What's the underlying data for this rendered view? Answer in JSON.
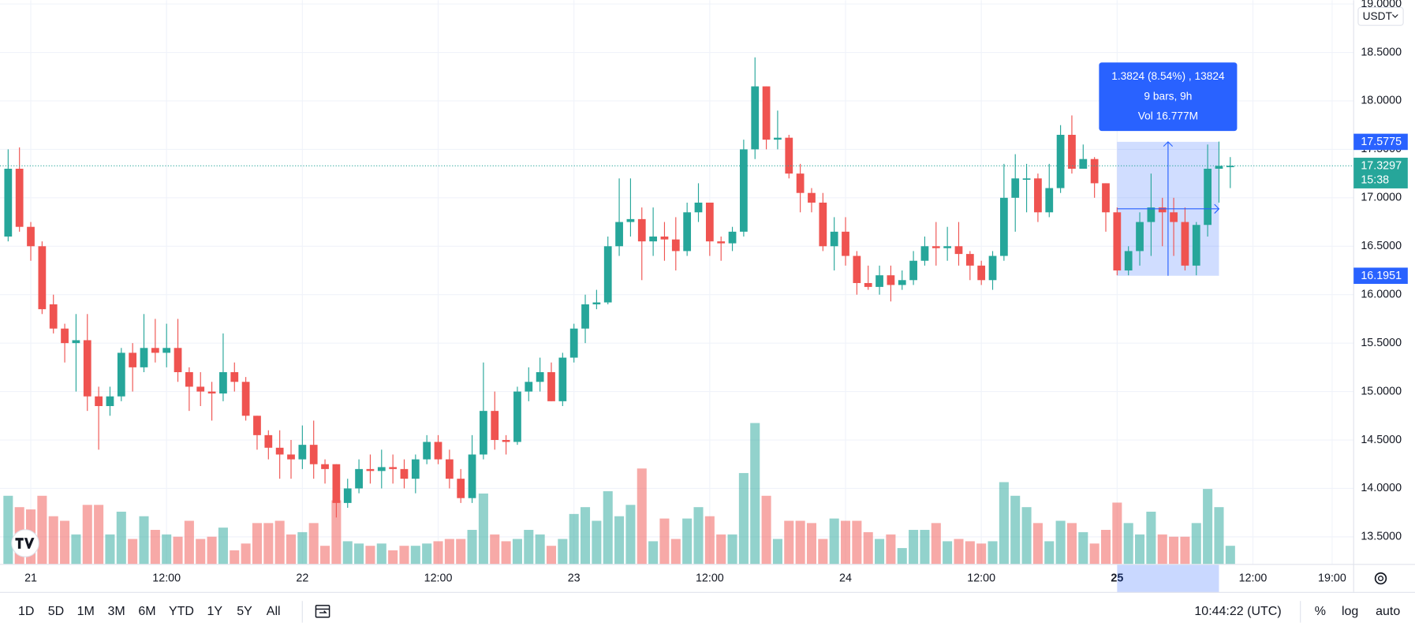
{
  "chart_data": {
    "type": "candlestick",
    "currency": "USDT",
    "up_color": "#26a69a",
    "down_color": "#ef5350",
    "open": [
      16.6,
      17.3,
      16.7,
      16.5,
      15.9,
      15.65,
      15.5,
      15.53,
      14.95,
      14.85,
      14.95,
      15.4,
      15.25,
      15.45,
      15.4,
      15.45,
      15.2,
      15.05,
      15.0,
      14.98,
      15.2,
      15.1,
      14.75,
      14.55,
      14.42,
      14.35,
      14.3,
      14.45,
      14.25,
      14.25,
      13.85,
      14.0,
      14.2,
      14.18,
      14.22,
      14.2,
      14.1,
      14.3,
      14.48,
      14.3,
      14.1,
      13.9,
      14.35,
      14.8,
      14.5,
      14.48,
      15.0,
      15.1,
      15.2,
      14.9,
      15.35,
      15.65,
      15.9,
      15.92,
      16.5,
      16.75,
      16.78,
      16.55,
      16.6,
      16.57,
      16.45,
      16.85,
      16.95,
      16.55,
      16.53,
      16.65,
      17.5,
      18.15,
      17.6,
      17.62,
      17.25,
      17.05,
      16.95,
      16.5,
      16.65,
      16.4,
      16.12,
      16.08,
      16.2,
      16.1,
      16.15,
      16.35,
      16.5,
      16.48,
      16.5,
      16.42,
      16.3,
      16.15,
      16.4,
      17.0,
      17.2,
      17.2,
      16.85,
      17.1,
      17.65,
      17.3,
      17.4,
      17.15,
      16.85,
      16.25,
      16.45,
      16.75,
      16.9,
      16.85,
      16.75,
      16.3,
      16.72,
      17.3,
      17.33
    ],
    "high": [
      17.5,
      17.52,
      16.75,
      16.55,
      16.0,
      15.7,
      15.8,
      15.8,
      15.05,
      15.05,
      15.45,
      15.5,
      15.8,
      15.75,
      15.7,
      15.75,
      15.25,
      15.2,
      15.1,
      15.6,
      15.3,
      15.15,
      14.75,
      14.6,
      14.6,
      14.5,
      14.65,
      14.7,
      14.3,
      14.25,
      14.1,
      14.3,
      14.35,
      14.4,
      14.35,
      14.3,
      14.35,
      14.55,
      14.55,
      14.4,
      14.2,
      14.55,
      15.3,
      15.0,
      14.55,
      15.05,
      15.25,
      15.35,
      15.3,
      15.4,
      15.7,
      16.0,
      16.05,
      16.6,
      17.2,
      17.2,
      16.9,
      16.9,
      16.75,
      16.8,
      16.95,
      17.15,
      16.95,
      16.6,
      16.7,
      17.6,
      18.45,
      18.15,
      17.9,
      17.65,
      17.35,
      17.1,
      17.05,
      16.8,
      16.8,
      16.45,
      16.3,
      16.3,
      16.3,
      16.25,
      16.45,
      16.6,
      16.75,
      16.7,
      16.75,
      16.45,
      16.35,
      16.45,
      17.35,
      17.45,
      17.35,
      17.25,
      17.35,
      17.75,
      17.85,
      17.55,
      17.42,
      17.15,
      16.9,
      16.5,
      16.85,
      17.25,
      17.0,
      17.0,
      16.9,
      16.75,
      17.55,
      17.58,
      17.42
    ],
    "low": [
      16.55,
      16.65,
      16.35,
      15.8,
      15.6,
      15.3,
      15.0,
      14.8,
      14.4,
      14.75,
      14.9,
      15.0,
      15.2,
      15.3,
      15.25,
      15.1,
      14.8,
      14.85,
      14.7,
      14.9,
      15.0,
      14.7,
      14.4,
      14.3,
      14.1,
      14.1,
      14.2,
      14.1,
      14.05,
      13.7,
      13.8,
      13.95,
      14.05,
      14.0,
      14.05,
      14.0,
      13.95,
      14.25,
      14.25,
      14.0,
      13.85,
      13.85,
      14.3,
      14.4,
      14.35,
      14.45,
      14.9,
      15.0,
      14.9,
      14.85,
      15.3,
      15.5,
      15.85,
      15.9,
      16.4,
      16.6,
      16.15,
      16.4,
      16.35,
      16.25,
      16.4,
      16.75,
      16.4,
      16.35,
      16.45,
      16.6,
      17.4,
      17.5,
      17.5,
      17.2,
      16.85,
      16.85,
      16.45,
      16.25,
      16.3,
      16.0,
      16.05,
      16.0,
      15.93,
      16.05,
      16.1,
      16.3,
      16.3,
      16.35,
      16.3,
      16.15,
      16.1,
      16.05,
      16.35,
      16.65,
      16.85,
      16.75,
      16.8,
      17.05,
      17.25,
      17.3,
      17.0,
      16.65,
      16.2,
      16.2,
      16.3,
      16.4,
      16.5,
      16.4,
      16.25,
      16.2,
      16.6,
      16.95,
      17.1
    ],
    "close": [
      17.3,
      16.7,
      16.5,
      15.85,
      15.65,
      15.5,
      15.53,
      14.95,
      14.85,
      14.95,
      15.4,
      15.25,
      15.45,
      15.4,
      15.45,
      15.2,
      15.05,
      15.0,
      14.98,
      15.2,
      15.1,
      14.75,
      14.55,
      14.42,
      14.35,
      14.3,
      14.45,
      14.25,
      14.2,
      13.85,
      14.0,
      14.2,
      14.18,
      14.22,
      14.2,
      14.1,
      14.3,
      14.48,
      14.3,
      14.1,
      13.9,
      14.35,
      14.8,
      14.5,
      14.48,
      15.0,
      15.1,
      15.2,
      14.9,
      15.35,
      15.65,
      15.9,
      15.92,
      16.5,
      16.75,
      16.78,
      16.55,
      16.6,
      16.57,
      16.45,
      16.85,
      16.95,
      16.55,
      16.53,
      16.65,
      17.5,
      18.15,
      17.6,
      17.62,
      17.25,
      17.05,
      16.95,
      16.5,
      16.65,
      16.4,
      16.12,
      16.08,
      16.2,
      16.1,
      16.15,
      16.35,
      16.5,
      16.48,
      16.5,
      16.42,
      16.3,
      16.15,
      16.4,
      17.0,
      17.2,
      17.2,
      16.85,
      17.1,
      17.65,
      17.3,
      17.4,
      17.15,
      16.85,
      16.25,
      16.45,
      16.75,
      16.9,
      16.85,
      16.75,
      16.3,
      16.72,
      17.3,
      17.33,
      17.33
    ],
    "volume": [
      3.0,
      2.5,
      2.4,
      3.0,
      2.1,
      1.9,
      1.3,
      2.6,
      2.6,
      1.3,
      2.3,
      1.1,
      2.1,
      1.5,
      1.3,
      1.2,
      1.9,
      1.1,
      1.2,
      1.6,
      0.6,
      0.9,
      1.8,
      1.8,
      1.9,
      1.3,
      1.4,
      1.8,
      0.8,
      2.8,
      1.0,
      0.9,
      0.8,
      0.9,
      0.6,
      0.8,
      0.8,
      0.9,
      1.0,
      1.1,
      1.1,
      1.5,
      3.1,
      1.3,
      1.0,
      1.1,
      1.5,
      1.3,
      0.8,
      1.1,
      2.2,
      2.5,
      1.9,
      3.2,
      2.1,
      2.6,
      4.2,
      1.0,
      2.0,
      1.1,
      2.0,
      2.5,
      2.1,
      1.3,
      1.3,
      4.0,
      6.2,
      3.0,
      1.1,
      1.9,
      1.9,
      1.8,
      1.1,
      2.0,
      1.9,
      1.9,
      1.4,
      1.1,
      1.3,
      0.7,
      1.5,
      1.5,
      1.8,
      1.0,
      1.1,
      1.0,
      0.9,
      1.0,
      3.6,
      3.0,
      2.5,
      1.8,
      1.0,
      1.9,
      1.8,
      1.4,
      0.9,
      1.5,
      2.7,
      1.8,
      1.3,
      2.3,
      1.3,
      1.2,
      1.2,
      1.8,
      3.3,
      2.5,
      0.8
    ],
    "xlim": [
      -0.72,
      118.9
    ],
    "xticks": [
      {
        "value": 2,
        "label": "21"
      },
      {
        "value": 14,
        "label": "12:00"
      },
      {
        "value": 26,
        "label": "22"
      },
      {
        "value": 38,
        "label": "12:00"
      },
      {
        "value": 50,
        "label": "23"
      },
      {
        "value": 62,
        "label": "12:00"
      },
      {
        "value": 74,
        "label": "24"
      },
      {
        "value": 86,
        "label": "12:00"
      },
      {
        "value": 98,
        "label": "25"
      },
      {
        "value": 110,
        "label": "12:00"
      },
      {
        "value": 117,
        "label": "19:00"
      }
    ],
    "ylim": [
      13.22,
      19.04
    ],
    "yticks": [
      {
        "value": 13.5,
        "label": "13.5000"
      },
      {
        "value": 14,
        "label": "14.0000"
      },
      {
        "value": 14.5,
        "label": "14.5000"
      },
      {
        "value": 15,
        "label": "15.0000"
      },
      {
        "value": 15.5,
        "label": "15.5000"
      },
      {
        "value": 16,
        "label": "16.0000"
      },
      {
        "value": 16.5,
        "label": "16.5000"
      },
      {
        "value": 17,
        "label": "17.0000"
      },
      {
        "value": 17.5,
        "label": "17.5000"
      },
      {
        "value": 18,
        "label": "18.0000"
      },
      {
        "value": 18.5,
        "label": "18.5000"
      },
      {
        "value": 19,
        "label": "19.0000"
      }
    ],
    "grid": true,
    "last_price": 17.3297,
    "countdown": "15:38",
    "measure": {
      "start": 98,
      "end": 107,
      "top": 17.5775,
      "bottom": 16.1951,
      "lines": [
        "1.3824 (8.54%) , 13824",
        "9 bars, 9h",
        "Vol 16.777M"
      ]
    }
  },
  "toolbar": {
    "ranges": [
      "1D",
      "5D",
      "1M",
      "3M",
      "6M",
      "YTD",
      "1Y",
      "5Y",
      "All"
    ],
    "clock": "10:44:22 (UTC)",
    "options": [
      "%",
      "log",
      "auto"
    ]
  }
}
